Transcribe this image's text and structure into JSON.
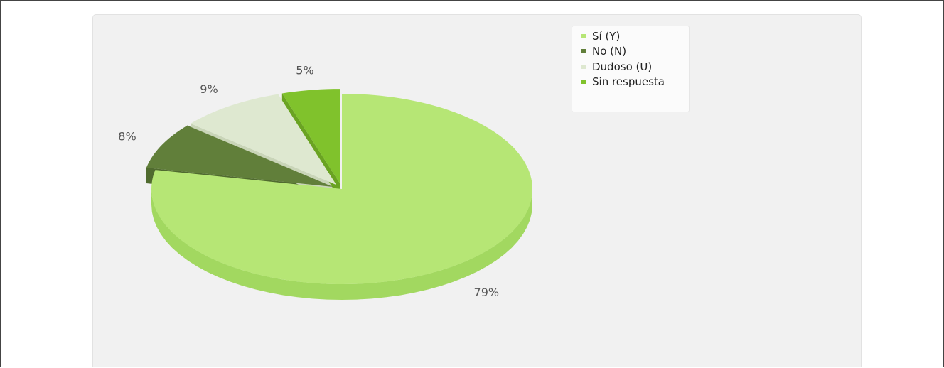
{
  "colors": {
    "frame_border": "#444444",
    "panel_bg": "#f1f1f1",
    "label_text": "#555555"
  },
  "chart_data": {
    "type": "pie",
    "title": "",
    "three_d": true,
    "exploded": true,
    "start_angle_deg": 90,
    "legend_position": "top-right",
    "slices": [
      {
        "label": "Sí (Y)",
        "value": 79,
        "value_label": "79%",
        "color": "#b6e675",
        "side_color": "#a2d860"
      },
      {
        "label": "No (N)",
        "value": 8,
        "value_label": "8%",
        "color": "#617f3a",
        "side_color": "#506b2f"
      },
      {
        "label": "Dudoso (U)",
        "value": 9,
        "value_label": "9%",
        "color": "#dee8d0",
        "side_color": "#c9d5b8"
      },
      {
        "label": "Sin respuesta",
        "value": 5,
        "value_label": "5%",
        "color": "#80c22c",
        "side_color": "#6aa322"
      }
    ]
  }
}
